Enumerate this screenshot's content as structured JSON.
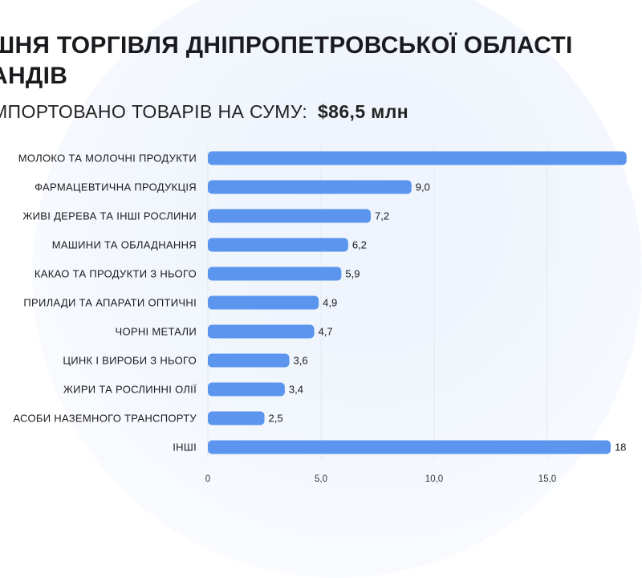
{
  "header": {
    "title_line1": "ШНЯ ТОРГІВЛЯ ДНІПРОПЕТРОВСЬКОЇ ОБЛАСТІ",
    "title_line2": "АНДІВ",
    "subtitle_prefix": "МПОРТОВАНО ТОВАРІВ НА СУМУ:",
    "subtitle_amount": "$86,5 млн"
  },
  "colors": {
    "bar": "#5b95ee",
    "grid": "#e4e8ef",
    "background_circle": "#eef4fd"
  },
  "chart_data": {
    "type": "bar",
    "orientation": "horizontal",
    "categories": [
      "МОЛОКО ТА МОЛОЧНІ ПРОДУКТИ",
      "ФАРМАЦЕВТИЧНА ПРОДУКЦІЯ",
      "ЖИВІ ДЕРЕВА ТА ІНШІ РОСЛИНИ",
      "МАШИНИ ТА ОБЛАДНАННЯ",
      "КАКАО ТА ПРОДУКТИ З НЬОГО",
      "ПРИЛАДИ ТА АПАРАТИ ОПТИЧНІ",
      "ЧОРНІ МЕТАЛИ",
      "ЦИНК І ВИРОБИ З НЬОГО",
      "ЖИРИ ТА РОСЛИННІ ОЛІЇ",
      "АСОБИ НАЗЕМНОГО ТРАНСПОРТУ",
      "ІНШІ"
    ],
    "values": [
      18.5,
      9.0,
      7.2,
      6.2,
      5.9,
      4.9,
      4.7,
      3.6,
      3.4,
      2.5,
      17.8
    ],
    "value_labels": [
      "",
      "9,0",
      "7,2",
      "6,2",
      "5,9",
      "4,9",
      "4,7",
      "3,6",
      "3,4",
      "2,5",
      "18"
    ],
    "xticks": [
      0,
      5,
      10,
      15
    ],
    "xtick_labels": [
      "0",
      "5,0",
      "10,0",
      "15,0"
    ],
    "xlim": [
      0,
      20
    ],
    "grid": true
  }
}
